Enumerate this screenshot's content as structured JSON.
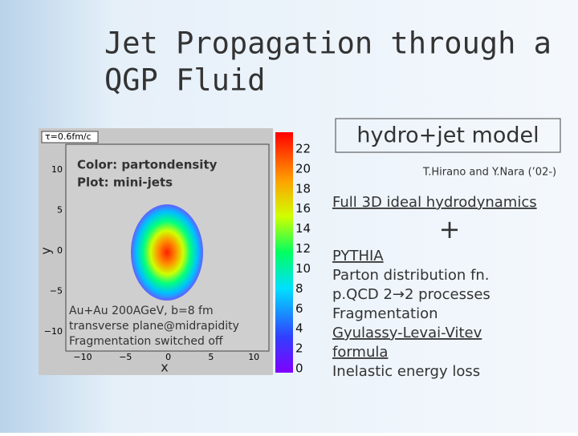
{
  "title": [
    "Jet Propagation through a",
    "QGP Fluid"
  ],
  "plot": {
    "time_label": "τ=0.6fm/c",
    "legend": [
      "Color: partondensity",
      "Plot: mini-jets"
    ],
    "notes": [
      "Au+Au 200AGeV, b=8 fm",
      "transverse plane@midrapidity",
      "Fragmentation switched off"
    ],
    "y_label": "y",
    "x_label": "x",
    "yticks": [
      "10",
      "5",
      "0",
      "−5",
      "−10"
    ],
    "xticks": [
      "−10",
      "−5",
      "0",
      "5",
      "10"
    ],
    "colorbar_ticks": [
      "22",
      "20",
      "18",
      "16",
      "14",
      "12",
      "10",
      "8",
      "6",
      "4",
      "2",
      "0"
    ]
  },
  "model_box": "hydro+jet model",
  "credit": "T.Hirano and Y.Nara (’02-)",
  "hydro": "Full 3D ideal hydrodynamics",
  "plus": "+",
  "lines": [
    {
      "text": "PYTHIA",
      "underline": true
    },
    {
      "text": "Parton distribution fn.",
      "underline": false
    },
    {
      "text": "p.QCD 2→2 processes",
      "underline": false
    },
    {
      "text": "Fragmentation",
      "underline": false
    },
    {
      "text": "Gyulassy-Levai-Vitev",
      "underline": true
    },
    {
      "text": "formula",
      "underline": true
    },
    {
      "text": "Inelastic energy loss",
      "underline": false
    }
  ]
}
